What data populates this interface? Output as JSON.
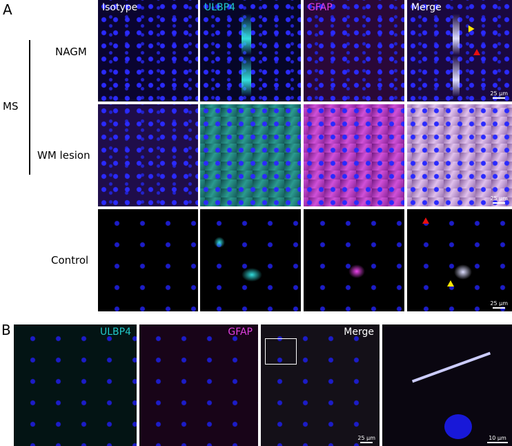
{
  "panel_a": {
    "letter": "A",
    "group_label": "MS",
    "columns": [
      "Isotype",
      "ULBP4",
      "GFAP",
      "Merge"
    ],
    "column_colors": [
      "#ffffff",
      "#22c8c8",
      "#e040e0",
      "#ffffff"
    ],
    "rows": [
      "NAGM",
      "WM lesion",
      "Control"
    ],
    "scale_bar": "25 µm",
    "arrowhead_colors": {
      "yellow": "#ffe600",
      "red": "#e81010"
    }
  },
  "panel_b": {
    "letter": "B",
    "labels": [
      "ULBP4",
      "GFAP",
      "Merge"
    ],
    "scale_bar_merge": "25 µm",
    "scale_bar_inset": "10 µm"
  }
}
